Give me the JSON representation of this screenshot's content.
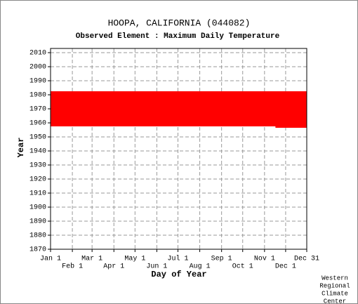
{
  "chart_data": {
    "type": "timeline",
    "title": "HOOPA, CALIFORNIA   (044082)",
    "subtitle": "Observed Element : Maximum Daily Temperature",
    "y_label": "Year",
    "x_label": "Day of Year",
    "credit": [
      "Western",
      "Regional",
      "Climate",
      "Center"
    ],
    "color": "#ff0000",
    "years": [
      1957,
      1958,
      1959,
      1960,
      1961,
      1962,
      1963,
      1964,
      1965,
      1966,
      1967,
      1968,
      1969,
      1970,
      1971,
      1972,
      1973,
      1974,
      1975,
      1976,
      1977,
      1978,
      1979,
      1980,
      1981,
      1982
    ],
    "start_day": [
      321,
      1,
      1,
      1,
      1,
      1,
      1,
      1,
      1,
      1,
      1,
      1,
      1,
      1,
      1,
      1,
      1,
      1,
      1,
      1,
      1,
      1,
      1,
      1,
      1,
      1
    ],
    "end_day": [
      365,
      365,
      365,
      365,
      365,
      365,
      365,
      365,
      365,
      365,
      365,
      365,
      365,
      365,
      365,
      365,
      365,
      365,
      365,
      365,
      365,
      365,
      365,
      365,
      365,
      365
    ],
    "xlim": [
      1,
      365
    ],
    "xticks": [
      {
        "value": 1,
        "label": "Jan 1"
      },
      {
        "value": 32,
        "label": "Feb 1"
      },
      {
        "value": 60,
        "label": "Mar 1"
      },
      {
        "value": 91,
        "label": "Apr 1"
      },
      {
        "value": 121,
        "label": "May 1"
      },
      {
        "value": 152,
        "label": "Jun 1"
      },
      {
        "value": 182,
        "label": "Jul 1"
      },
      {
        "value": 213,
        "label": "Aug 1"
      },
      {
        "value": 244,
        "label": "Sep 1"
      },
      {
        "value": 274,
        "label": "Oct 1"
      },
      {
        "value": 305,
        "label": "Nov 1"
      },
      {
        "value": 335,
        "label": "Dec 1"
      },
      {
        "value": 365,
        "label": "Dec 31"
      }
    ],
    "ylim": [
      1870,
      2013
    ],
    "yticks": [
      1870,
      1880,
      1890,
      1900,
      1910,
      1920,
      1930,
      1940,
      1950,
      1960,
      1970,
      1980,
      1990,
      2000,
      2010
    ],
    "grid": true
  }
}
